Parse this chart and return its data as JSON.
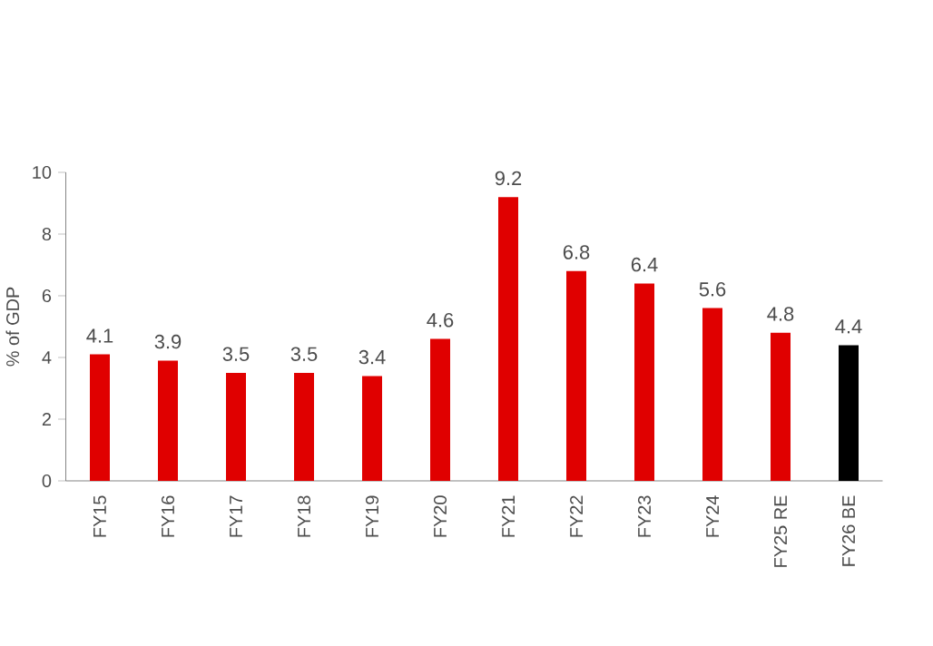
{
  "chart_data": {
    "type": "bar",
    "ylabel": "% of GDP",
    "categories": [
      "FY15",
      "FY16",
      "FY17",
      "FY18",
      "FY19",
      "FY20",
      "FY21",
      "FY22",
      "FY23",
      "FY24",
      "FY25 RE",
      "FY26 BE"
    ],
    "values": [
      4.1,
      3.9,
      3.5,
      3.5,
      3.4,
      4.6,
      9.2,
      6.8,
      6.4,
      5.6,
      4.8,
      4.4
    ],
    "colors": [
      "#e00000",
      "#e00000",
      "#e00000",
      "#e00000",
      "#e00000",
      "#e00000",
      "#e00000",
      "#e00000",
      "#e00000",
      "#e00000",
      "#e00000",
      "#000000"
    ],
    "ylim": [
      0,
      10
    ],
    "yticks": [
      0,
      2,
      4,
      6,
      8,
      10
    ],
    "data_labels": true,
    "grid": false
  }
}
